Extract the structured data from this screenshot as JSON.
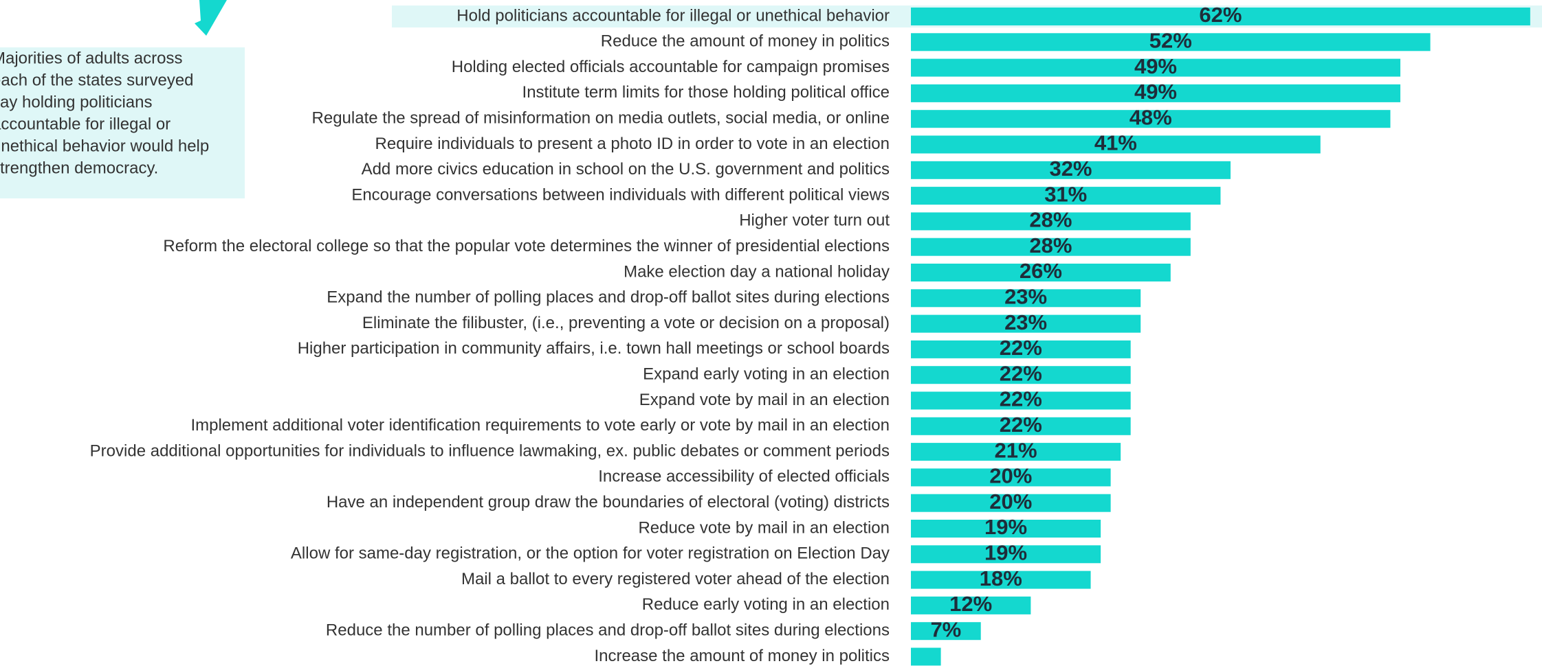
{
  "chart_data": {
    "type": "bar",
    "orientation": "horizontal",
    "color": "#14d8cf",
    "highlight_color": "#dff7f7",
    "annotation": [
      "Majorities of adults across",
      "each of the states surveyed",
      "say holding politicians",
      "accountable for illegal or",
      "unethical behavior would help",
      "strengthen democracy."
    ],
    "categories": [
      "Hold politicians accountable for illegal or unethical behavior",
      "Reduce the amount of money in politics",
      "Holding elected officials accountable for campaign promises",
      "Institute term limits for those holding political office",
      "Regulate the spread of misinformation on media outlets, social media, or online",
      "Require individuals to present a photo ID in order to vote in an election",
      "Add more civics education in school on the U.S. government and politics",
      "Encourage conversations between individuals with different political views",
      "Higher voter turn out",
      "Reform the electoral college so that the popular vote determines the winner of presidential elections",
      "Make election day a national holiday",
      "Expand the number of polling places and drop-off ballot sites during elections",
      "Eliminate the filibuster, (i.e., preventing a vote or decision on a proposal)",
      "Higher participation in community affairs, i.e. town hall meetings or school boards",
      "Expand early voting in an election",
      "Expand vote by mail in an election",
      "Implement additional voter identification requirements to vote early or vote by mail in an election",
      "Provide additional opportunities for individuals to influence lawmaking, ex. public debates or comment periods",
      "Increase accessibility of elected officials",
      "Have an independent group draw the boundaries of electoral (voting) districts",
      "Reduce vote by mail in an election",
      "Allow for same-day registration, or the option for voter registration on Election Day",
      "Mail a ballot to every registered voter ahead of the election",
      "Reduce early voting in an election",
      "Reduce the number of polling places and drop-off ballot sites during elections",
      "Increase the amount of money in politics"
    ],
    "values": [
      62,
      52,
      49,
      49,
      48,
      41,
      32,
      31,
      28,
      28,
      26,
      23,
      23,
      22,
      22,
      22,
      22,
      21,
      20,
      20,
      19,
      19,
      18,
      12,
      7,
      3
    ],
    "value_labels": [
      "62%",
      "52%",
      "49%",
      "49%",
      "48%",
      "41%",
      "32%",
      "31%",
      "28%",
      "28%",
      "26%",
      "23%",
      "23%",
      "22%",
      "22%",
      "22%",
      "22%",
      "21%",
      "20%",
      "20%",
      "19%",
      "19%",
      "18%",
      "12%",
      "7%",
      null
    ]
  }
}
